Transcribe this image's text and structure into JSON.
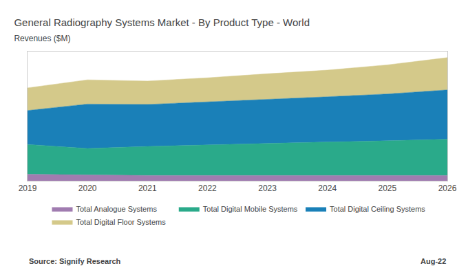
{
  "chart_data": {
    "type": "area",
    "stacked": true,
    "title": "General Radiography Systems Market - By Product Type - World",
    "subtitle": "Revenues ($M)",
    "x": [
      2019,
      2020,
      2021,
      2022,
      2023,
      2024,
      2025,
      2026
    ],
    "series": [
      {
        "name": "Total Analogue Systems",
        "color": "#a07cb0",
        "values": [
          80,
          70,
          65,
          65,
          65,
          65,
          65,
          65
        ]
      },
      {
        "name": "Total Digital Mobile Systems",
        "color": "#2aaa8a",
        "values": [
          370,
          330,
          360,
          380,
          400,
          415,
          430,
          450
        ]
      },
      {
        "name": "Total Digital Ceiling Systems",
        "color": "#1a80b8",
        "values": [
          420,
          550,
          520,
          530,
          545,
          560,
          580,
          610
        ]
      },
      {
        "name": "Total Digital Floor Systems",
        "color": "#d4c98a",
        "values": [
          280,
          300,
          290,
          300,
          315,
          330,
          360,
          400
        ]
      }
    ],
    "xlim": [
      2019,
      2026
    ],
    "xticks": [
      2019,
      2020,
      2021,
      2022,
      2023,
      2024,
      2025,
      2026
    ],
    "ylim": [
      0,
      1600
    ],
    "tick_labels": "x",
    "grid": false,
    "legend": "bottom",
    "annotations": [
      "Source: Signify Research",
      "Aug-22"
    ]
  }
}
